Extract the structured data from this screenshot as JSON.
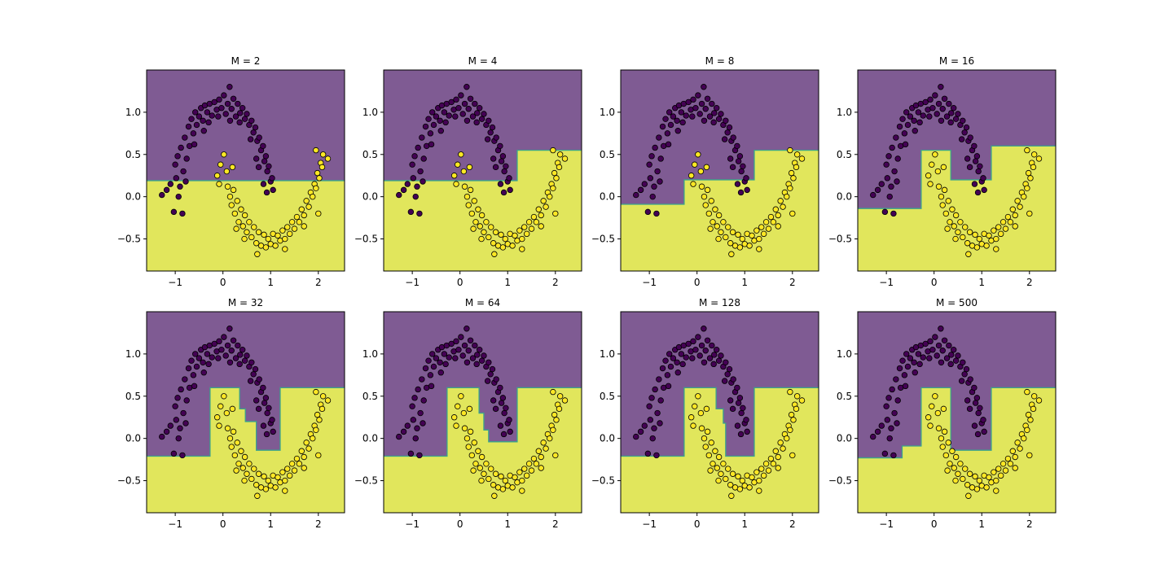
{
  "chart_data": {
    "type": "scatter",
    "layout": "2x4 small multiples",
    "description_of_marks": "decision regions (two classes) with two-moons scatter points",
    "x_ticks": [
      -1,
      0,
      1,
      2
    ],
    "x_tick_labels": [
      "−1",
      "0",
      "1",
      "2"
    ],
    "y_ticks": [
      1.0,
      0.5,
      0.0,
      -0.5
    ],
    "y_tick_labels": [
      "1.0",
      "0.5",
      "0.0",
      "−0.5"
    ],
    "xlim": [
      -1.6,
      2.55
    ],
    "ylim": [
      -0.88,
      1.5
    ],
    "grid": false,
    "legend": "none",
    "colors": {
      "class0_region": "#7f5b93",
      "class1_region": "#e1e65c",
      "class0_point": "#440154",
      "class1_point": "#fde725",
      "boundary": "#3aa38b",
      "point_edge": "#000000"
    },
    "panels": [
      {
        "title": "M = 2",
        "boundary": [
          [
            -1.6,
            0.19
          ],
          [
            2.55,
            0.19
          ]
        ]
      },
      {
        "title": "M = 4",
        "boundary": [
          [
            -1.6,
            0.19
          ],
          [
            1.2,
            0.19
          ],
          [
            1.2,
            0.55
          ],
          [
            2.55,
            0.55
          ]
        ]
      },
      {
        "title": "M = 8",
        "boundary": [
          [
            -1.6,
            -0.09
          ],
          [
            -0.27,
            -0.09
          ],
          [
            -0.27,
            0.2
          ],
          [
            1.2,
            0.2
          ],
          [
            1.2,
            0.55
          ],
          [
            2.55,
            0.55
          ]
        ]
      },
      {
        "title": "M = 16",
        "boundary": [
          [
            -1.6,
            -0.14
          ],
          [
            -0.27,
            -0.14
          ],
          [
            -0.27,
            0.55
          ],
          [
            0.35,
            0.55
          ],
          [
            0.35,
            0.2
          ],
          [
            1.2,
            0.2
          ],
          [
            1.2,
            0.6
          ],
          [
            2.55,
            0.6
          ]
        ]
      },
      {
        "title": "M = 32",
        "boundary": [
          [
            -1.6,
            -0.21
          ],
          [
            -0.27,
            -0.21
          ],
          [
            -0.27,
            0.6
          ],
          [
            0.35,
            0.6
          ],
          [
            0.35,
            0.35
          ],
          [
            0.47,
            0.35
          ],
          [
            0.47,
            0.2
          ],
          [
            0.7,
            0.2
          ],
          [
            0.7,
            -0.14
          ],
          [
            1.2,
            -0.14
          ],
          [
            1.2,
            0.6
          ],
          [
            2.55,
            0.6
          ]
        ]
      },
      {
        "title": "M = 64",
        "boundary": [
          [
            -1.6,
            -0.21
          ],
          [
            -0.27,
            -0.21
          ],
          [
            -0.27,
            0.6
          ],
          [
            0.4,
            0.6
          ],
          [
            0.4,
            0.3
          ],
          [
            0.5,
            0.3
          ],
          [
            0.5,
            0.1
          ],
          [
            0.6,
            0.1
          ],
          [
            0.6,
            -0.04
          ],
          [
            1.2,
            -0.04
          ],
          [
            1.2,
            0.6
          ],
          [
            2.55,
            0.6
          ]
        ]
      },
      {
        "title": "M = 128",
        "boundary": [
          [
            -1.6,
            -0.21
          ],
          [
            -0.27,
            -0.21
          ],
          [
            -0.27,
            0.6
          ],
          [
            0.4,
            0.6
          ],
          [
            0.4,
            0.35
          ],
          [
            0.55,
            0.35
          ],
          [
            0.55,
            0.18
          ],
          [
            0.6,
            0.18
          ],
          [
            0.6,
            -0.21
          ],
          [
            1.2,
            -0.21
          ],
          [
            1.2,
            0.6
          ],
          [
            2.55,
            0.6
          ]
        ]
      },
      {
        "title": "M = 500",
        "boundary": [
          [
            -1.6,
            -0.23
          ],
          [
            -0.67,
            -0.23
          ],
          [
            -0.67,
            -0.09
          ],
          [
            -0.27,
            -0.09
          ],
          [
            -0.27,
            0.6
          ],
          [
            0.35,
            0.6
          ],
          [
            0.35,
            -0.14
          ],
          [
            1.2,
            -0.14
          ],
          [
            1.2,
            0.6
          ],
          [
            2.55,
            0.6
          ]
        ]
      }
    ],
    "dataset": {
      "class0_points": [
        [
          -1.28,
          0.02
        ],
        [
          -1.1,
          0.15
        ],
        [
          -1.03,
          -0.18
        ],
        [
          -0.98,
          0.22
        ],
        [
          -1.0,
          0.38
        ],
        [
          -0.95,
          0.48
        ],
        [
          -0.9,
          0.12
        ],
        [
          -0.88,
          0.58
        ],
        [
          -0.85,
          -0.2
        ],
        [
          -0.83,
          0.3
        ],
        [
          -0.8,
          0.7
        ],
        [
          -0.76,
          0.45
        ],
        [
          -0.72,
          0.83
        ],
        [
          -0.7,
          0.6
        ],
        [
          -0.66,
          0.92
        ],
        [
          -0.62,
          0.75
        ],
        [
          -0.58,
          1.0
        ],
        [
          -0.55,
          0.85
        ],
        [
          -0.5,
          0.95
        ],
        [
          -0.46,
          1.05
        ],
        [
          -0.42,
          0.9
        ],
        [
          -0.38,
          1.08
        ],
        [
          -0.33,
          1.0
        ],
        [
          -0.28,
          1.1
        ],
        [
          -0.23,
          0.96
        ],
        [
          -0.18,
          1.12
        ],
        [
          -0.13,
          1.03
        ],
        [
          -0.08,
          1.15
        ],
        [
          -0.03,
          1.05
        ],
        [
          0.02,
          1.2
        ],
        [
          0.06,
          0.98
        ],
        [
          0.1,
          1.1
        ],
        [
          0.14,
          1.3
        ],
        [
          0.18,
          1.04
        ],
        [
          0.22,
          1.16
        ],
        [
          0.27,
          0.95
        ],
        [
          0.31,
          1.1
        ],
        [
          0.36,
          0.99
        ],
        [
          0.41,
          1.05
        ],
        [
          0.46,
          0.92
        ],
        [
          0.5,
          0.98
        ],
        [
          0.55,
          0.85
        ],
        [
          0.6,
          0.9
        ],
        [
          0.64,
          0.76
        ],
        [
          0.68,
          0.82
        ],
        [
          0.72,
          0.66
        ],
        [
          0.76,
          0.7
        ],
        [
          0.8,
          0.55
        ],
        [
          0.84,
          0.6
        ],
        [
          0.87,
          0.42
        ],
        [
          0.9,
          0.48
        ],
        [
          0.93,
          0.3
        ],
        [
          0.96,
          0.36
        ],
        [
          1.0,
          0.18
        ],
        [
          1.03,
          0.22
        ],
        [
          1.05,
          0.08
        ],
        [
          0.85,
          0.15
        ],
        [
          0.92,
          0.05
        ],
        [
          0.75,
          0.35
        ],
        [
          0.7,
          0.45
        ],
        [
          -0.3,
          0.88
        ],
        [
          -0.1,
          0.95
        ],
        [
          0.15,
          0.9
        ],
        [
          0.35,
          0.88
        ],
        [
          -0.6,
          0.62
        ],
        [
          -0.4,
          0.78
        ],
        [
          -0.78,
          0.18
        ],
        [
          -1.18,
          0.08
        ],
        [
          -0.93,
          0.0
        ],
        [
          0.58,
          0.68
        ]
      ],
      "class1_points": [
        [
          -0.05,
          0.38
        ],
        [
          0.02,
          0.5
        ],
        [
          0.08,
          0.3
        ],
        [
          -0.12,
          0.25
        ],
        [
          0.1,
          0.12
        ],
        [
          0.15,
          0.0
        ],
        [
          0.18,
          -0.1
        ],
        [
          0.22,
          0.08
        ],
        [
          0.25,
          -0.2
        ],
        [
          0.3,
          -0.05
        ],
        [
          0.33,
          -0.3
        ],
        [
          0.38,
          -0.15
        ],
        [
          0.42,
          -0.35
        ],
        [
          0.46,
          -0.22
        ],
        [
          0.5,
          -0.42
        ],
        [
          0.55,
          -0.3
        ],
        [
          0.6,
          -0.48
        ],
        [
          0.65,
          -0.36
        ],
        [
          0.7,
          -0.55
        ],
        [
          0.75,
          -0.42
        ],
        [
          0.8,
          -0.58
        ],
        [
          0.86,
          -0.45
        ],
        [
          0.9,
          -0.6
        ],
        [
          0.95,
          -0.5
        ],
        [
          1.0,
          -0.56
        ],
        [
          1.05,
          -0.44
        ],
        [
          1.1,
          -0.58
        ],
        [
          1.15,
          -0.46
        ],
        [
          1.2,
          -0.52
        ],
        [
          1.25,
          -0.4
        ],
        [
          1.3,
          -0.5
        ],
        [
          1.35,
          -0.36
        ],
        [
          1.4,
          -0.44
        ],
        [
          1.45,
          -0.3
        ],
        [
          1.5,
          -0.38
        ],
        [
          1.55,
          -0.24
        ],
        [
          1.6,
          -0.3
        ],
        [
          1.65,
          -0.15
        ],
        [
          1.7,
          -0.22
        ],
        [
          1.75,
          -0.05
        ],
        [
          1.8,
          -0.12
        ],
        [
          1.84,
          0.05
        ],
        [
          1.88,
          0.0
        ],
        [
          1.92,
          0.15
        ],
        [
          1.95,
          0.1
        ],
        [
          1.98,
          0.28
        ],
        [
          2.02,
          0.22
        ],
        [
          2.05,
          0.4
        ],
        [
          2.08,
          0.35
        ],
        [
          2.1,
          0.5
        ],
        [
          2.2,
          0.45
        ],
        [
          1.95,
          0.55
        ],
        [
          0.72,
          -0.68
        ],
        [
          1.3,
          -0.62
        ],
        [
          0.28,
          -0.38
        ],
        [
          0.45,
          -0.5
        ],
        [
          1.7,
          -0.35
        ],
        [
          2.0,
          -0.2
        ],
        [
          0.2,
          0.35
        ],
        [
          -0.08,
          0.15
        ]
      ]
    }
  }
}
